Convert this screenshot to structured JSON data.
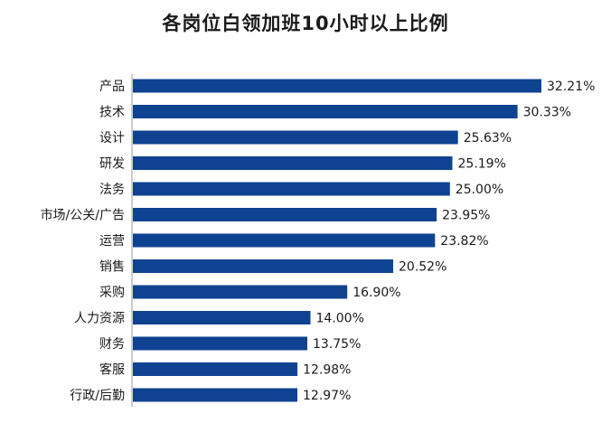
{
  "chart_data": {
    "type": "bar",
    "orientation": "horizontal",
    "title": "各岗位白领加班10小时以上比例",
    "xlabel": "",
    "ylabel": "",
    "grid": false,
    "legend": "none",
    "xlim": [
      0,
      35
    ],
    "categories": [
      "产品",
      "技术",
      "设计",
      "研发",
      "法务",
      "市场/公关/广告",
      "运营",
      "销售",
      "采购",
      "人力资源",
      "财务",
      "客服",
      "行政/后勤"
    ],
    "values": [
      32.21,
      30.33,
      25.63,
      25.19,
      25.0,
      23.95,
      23.82,
      20.52,
      16.9,
      14.0,
      13.75,
      12.98,
      12.97
    ],
    "value_labels": [
      "32.21%",
      "30.33%",
      "25.63%",
      "25.19%",
      "25.00%",
      "23.95%",
      "23.82%",
      "20.52%",
      "16.90%",
      "14.00%",
      "13.75%",
      "12.98%",
      "12.97%"
    ],
    "bar_color": "#0f4392",
    "axis_color": "#999999"
  }
}
